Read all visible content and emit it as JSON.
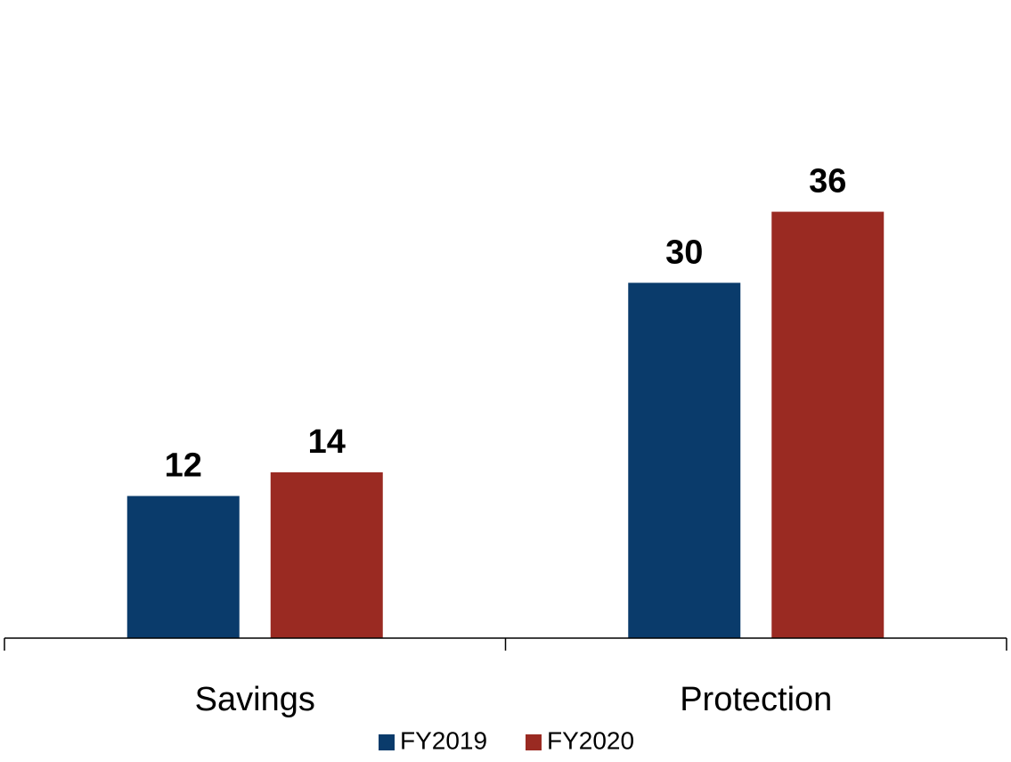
{
  "chart_data": {
    "type": "bar",
    "title": "",
    "xlabel": "",
    "ylabel": "",
    "categories": [
      "Savings",
      "Protection"
    ],
    "series": [
      {
        "name": "FY2019",
        "color": "#0a3b6b",
        "values": [
          12,
          30
        ]
      },
      {
        "name": "FY2020",
        "color": "#9a2a22",
        "values": [
          14,
          36
        ]
      }
    ],
    "ylim": [
      0,
      45
    ],
    "grid": false,
    "show_y_axis": false,
    "data_labels": true,
    "legend": {
      "position": "bottom-center"
    }
  }
}
